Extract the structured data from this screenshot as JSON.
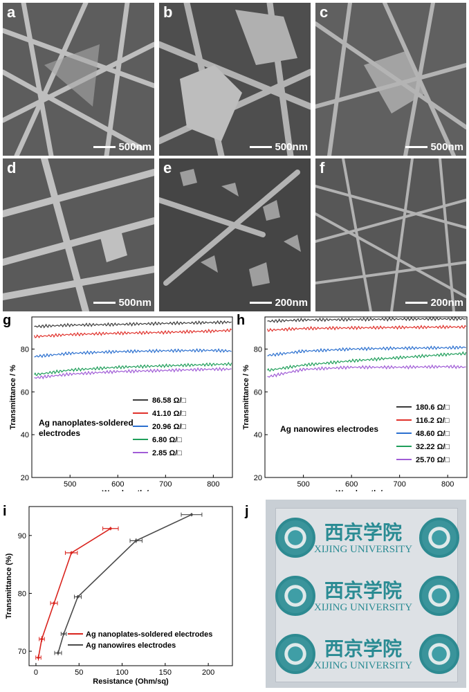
{
  "sem_panels": [
    {
      "letter": "a",
      "scale": "500nm"
    },
    {
      "letter": "b",
      "scale": "500nm"
    },
    {
      "letter": "c",
      "scale": "500nm"
    },
    {
      "letter": "d",
      "scale": "500nm"
    },
    {
      "letter": "e",
      "scale": "200nm"
    },
    {
      "letter": "f",
      "scale": "200nm"
    }
  ],
  "photo": {
    "letter": "j",
    "logo_cn": "西京学院",
    "logo_en": "XIJING UNIVERSITY"
  },
  "chart_data": [
    {
      "panel": "g",
      "type": "line",
      "xlabel": "Wavelength / nm",
      "ylabel": "Transmittance / %",
      "xlim": [
        420,
        840
      ],
      "ylim": [
        20,
        95
      ],
      "xticks": [
        500,
        600,
        700,
        800
      ],
      "yticks": [
        20,
        40,
        60,
        80
      ],
      "annotation": [
        "Ag nanoplates-soldered",
        "electrodes"
      ],
      "legend_position": "right",
      "series": [
        {
          "name": "86.58 Ω/□",
          "color": "#3a3a3a",
          "x": [
            425,
            500,
            600,
            700,
            800,
            840
          ],
          "y": [
            90.5,
            91.2,
            91.5,
            92.0,
            92.4,
            92.6
          ]
        },
        {
          "name": "41.10 Ω/□",
          "color": "#e0302a",
          "x": [
            425,
            500,
            600,
            700,
            800,
            840
          ],
          "y": [
            85.8,
            86.8,
            87.4,
            87.8,
            88.4,
            88.8
          ]
        },
        {
          "name": "20.96 Ω/□",
          "color": "#2a6fcf",
          "x": [
            425,
            500,
            600,
            700,
            800,
            840
          ],
          "y": [
            76.5,
            78.0,
            78.8,
            79.2,
            79.4,
            79.0
          ]
        },
        {
          "name": "6.80 Ω/□",
          "color": "#1f9e5a",
          "x": [
            425,
            500,
            600,
            700,
            800,
            840
          ],
          "y": [
            68.0,
            70.2,
            71.5,
            72.2,
            72.8,
            73.0
          ]
        },
        {
          "name": "2.85 Ω/□",
          "color": "#a05cd6",
          "x": [
            425,
            500,
            600,
            700,
            800,
            840
          ],
          "y": [
            66.5,
            68.3,
            69.5,
            70.0,
            70.6,
            70.6
          ]
        }
      ]
    },
    {
      "panel": "h",
      "type": "line",
      "xlabel": "Wavelength / nm",
      "ylabel": "Transmittance / %",
      "xlim": [
        420,
        840
      ],
      "ylim": [
        20,
        95
      ],
      "xticks": [
        500,
        600,
        700,
        800
      ],
      "yticks": [
        20,
        40,
        60,
        80
      ],
      "annotation": [
        "Ag nanowires electrodes"
      ],
      "legend_position": "right",
      "series": [
        {
          "name": "180.6 Ω/□",
          "color": "#3a3a3a",
          "x": [
            425,
            500,
            600,
            700,
            800,
            840
          ],
          "y": [
            93.0,
            93.6,
            93.8,
            94.0,
            94.1,
            94.1
          ]
        },
        {
          "name": "116.2 Ω/□",
          "color": "#e0302a",
          "x": [
            425,
            500,
            600,
            700,
            800,
            840
          ],
          "y": [
            88.8,
            89.6,
            89.9,
            90.1,
            90.3,
            90.3
          ]
        },
        {
          "name": "48.60 Ω/□",
          "color": "#2a6fcf",
          "x": [
            425,
            500,
            600,
            700,
            800,
            840
          ],
          "y": [
            77.0,
            79.0,
            80.0,
            80.4,
            80.6,
            80.8
          ]
        },
        {
          "name": "32.22 Ω/□",
          "color": "#1f9e5a",
          "x": [
            425,
            500,
            600,
            700,
            800,
            840
          ],
          "y": [
            70.0,
            72.5,
            74.5,
            76.0,
            77.5,
            78.0
          ]
        },
        {
          "name": "25.70 Ω/□",
          "color": "#a05cd6",
          "x": [
            425,
            500,
            600,
            700,
            800,
            840
          ],
          "y": [
            67.0,
            70.5,
            71.5,
            71.5,
            71.8,
            71.5
          ]
        }
      ]
    },
    {
      "panel": "i",
      "type": "line",
      "xlabel": "Resistance (Ohm/sq)",
      "ylabel": "Transmittance (%)",
      "xlim": [
        -8,
        228
      ],
      "ylim": [
        67.5,
        95
      ],
      "xticks": [
        0,
        50,
        100,
        150,
        200
      ],
      "yticks": [
        70,
        80,
        90
      ],
      "legend_position": "bottom-right",
      "series": [
        {
          "name": "Ag nanoplates-soldered electrodes",
          "color": "#d9231d",
          "x": [
            2.85,
            6.8,
            20.96,
            41.1,
            86.58
          ],
          "y": [
            68.9,
            72.1,
            78.3,
            87.0,
            91.2
          ],
          "xerr": [
            3,
            3,
            4,
            7,
            9
          ],
          "yerr": [
            0.5,
            0.5,
            0.3,
            0.3,
            0.3
          ]
        },
        {
          "name": "Ag nanowires electrodes",
          "color": "#4a4a4a",
          "x": [
            25.7,
            32.22,
            48.6,
            116.2,
            180.6
          ],
          "y": [
            69.7,
            73.0,
            79.4,
            89.1,
            93.6
          ],
          "xerr": [
            4,
            3,
            4,
            7,
            12
          ],
          "yerr": [
            0.4,
            0.3,
            0.3,
            0.4,
            0.3
          ]
        }
      ]
    }
  ]
}
